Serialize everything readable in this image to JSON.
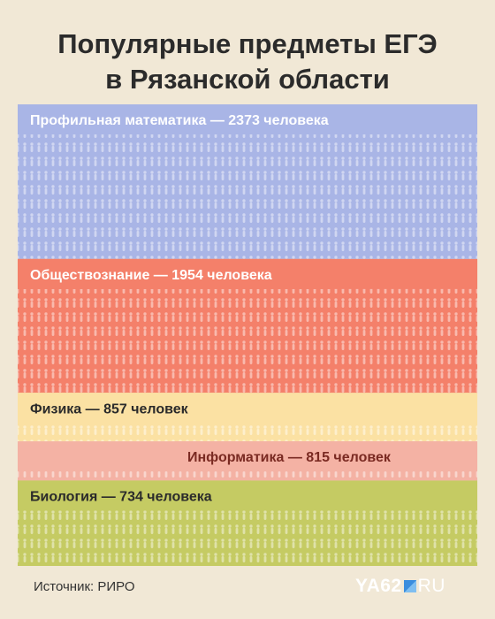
{
  "title_lines": [
    "Популярные предметы ЕГЭ",
    "в Рязанской области"
  ],
  "source": "Источник: РИРО",
  "logo": {
    "left": "YA62",
    "right": "RU"
  },
  "chart_data": {
    "type": "bar",
    "title": "Популярные предметы ЕГЭ в Рязанской области",
    "unit": "человек",
    "categories": [
      "Профильная математика",
      "Обществознание",
      "Физика",
      "Информатика",
      "Биология"
    ],
    "values": [
      2373,
      1954,
      857,
      815,
      734
    ],
    "labels": [
      "Профильная математика — 2373 человека",
      "Обществознание — 1954 человека",
      "Физика — 857 человек",
      "Информатика — 815 человек",
      "Биология — 734 человека"
    ],
    "colors": {
      "Профильная математика": "#a9b5e6",
      "Обществознание": "#f4806a",
      "Физика": "#fbe1a3",
      "Информатика": "#f4b2a4",
      "Биология": "#c5cb63"
    }
  }
}
